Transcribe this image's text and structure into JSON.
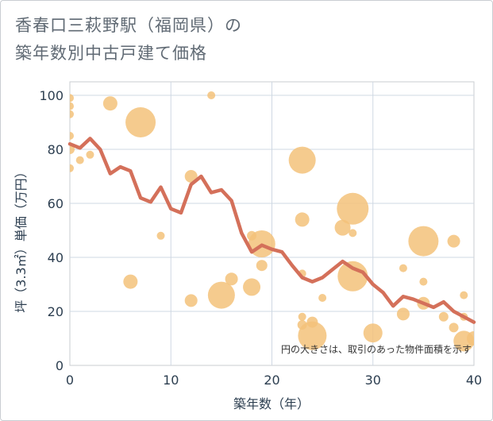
{
  "title_lines": [
    "香春口三萩野駅（福岡県）の",
    "築年数別中古戸建て価格"
  ],
  "chart_data": {
    "type": "scatter",
    "title": "香春口三萩野駅（福岡県）の築年数別中古戸建て価格",
    "xlabel": "築年数（年）",
    "ylabel": "坪（3.3㎡）単価（万円）",
    "xlim": [
      0,
      40
    ],
    "ylim": [
      0,
      105
    ],
    "x_ticks": [
      0,
      10,
      20,
      30,
      40
    ],
    "y_ticks": [
      0,
      20,
      40,
      60,
      80,
      100
    ],
    "grid": true,
    "annotation": "円の大きさは、取引のあった物件面積を示す",
    "colors": {
      "bubble": "#f3c27a",
      "line": "#d4705a",
      "grid": "#cfd8e3",
      "text": "#2c3e50"
    },
    "bubbles": [
      {
        "x": 0,
        "y": 99,
        "r": 5
      },
      {
        "x": 0,
        "y": 96,
        "r": 5
      },
      {
        "x": 0,
        "y": 93,
        "r": 5
      },
      {
        "x": 0,
        "y": 85,
        "r": 5
      },
      {
        "x": 0,
        "y": 80,
        "r": 6
      },
      {
        "x": 0,
        "y": 73,
        "r": 5
      },
      {
        "x": 1,
        "y": 76,
        "r": 5
      },
      {
        "x": 2,
        "y": 78,
        "r": 5
      },
      {
        "x": 4,
        "y": 97,
        "r": 9
      },
      {
        "x": 7,
        "y": 90,
        "r": 19
      },
      {
        "x": 6,
        "y": 31,
        "r": 9
      },
      {
        "x": 9,
        "y": 48,
        "r": 5
      },
      {
        "x": 12,
        "y": 70,
        "r": 8
      },
      {
        "x": 12,
        "y": 24,
        "r": 8
      },
      {
        "x": 14,
        "y": 100,
        "r": 5
      },
      {
        "x": 15,
        "y": 26,
        "r": 17
      },
      {
        "x": 16,
        "y": 32,
        "r": 8
      },
      {
        "x": 18,
        "y": 48,
        "r": 6
      },
      {
        "x": 18,
        "y": 29,
        "r": 11
      },
      {
        "x": 19,
        "y": 45,
        "r": 17
      },
      {
        "x": 19,
        "y": 37,
        "r": 7
      },
      {
        "x": 23,
        "y": 76,
        "r": 17
      },
      {
        "x": 23,
        "y": 54,
        "r": 9
      },
      {
        "x": 23,
        "y": 34,
        "r": 5
      },
      {
        "x": 23,
        "y": 18,
        "r": 5
      },
      {
        "x": 23,
        "y": 15,
        "r": 6
      },
      {
        "x": 24,
        "y": 16,
        "r": 7
      },
      {
        "x": 24,
        "y": 11,
        "r": 18
      },
      {
        "x": 25,
        "y": 25,
        "r": 5
      },
      {
        "x": 27,
        "y": 51,
        "r": 10
      },
      {
        "x": 28,
        "y": 58,
        "r": 20
      },
      {
        "x": 28,
        "y": 49,
        "r": 5
      },
      {
        "x": 28,
        "y": 33,
        "r": 19
      },
      {
        "x": 30,
        "y": 12,
        "r": 12
      },
      {
        "x": 33,
        "y": 36,
        "r": 5
      },
      {
        "x": 33,
        "y": 19,
        "r": 8
      },
      {
        "x": 35,
        "y": 46,
        "r": 19
      },
      {
        "x": 35,
        "y": 31,
        "r": 5
      },
      {
        "x": 35,
        "y": 23,
        "r": 8
      },
      {
        "x": 37,
        "y": 18,
        "r": 6
      },
      {
        "x": 38,
        "y": 46,
        "r": 8
      },
      {
        "x": 38,
        "y": 14,
        "r": 6
      },
      {
        "x": 39,
        "y": 26,
        "r": 5
      },
      {
        "x": 39,
        "y": 18,
        "r": 5
      },
      {
        "x": 39,
        "y": 9,
        "r": 13
      },
      {
        "x": 40,
        "y": 10,
        "r": 9
      }
    ],
    "trend": {
      "x": [
        0,
        1,
        2,
        3,
        4,
        5,
        6,
        7,
        8,
        9,
        10,
        11,
        12,
        13,
        14,
        15,
        16,
        17,
        18,
        19,
        20,
        21,
        22,
        23,
        24,
        25,
        26,
        27,
        28,
        29,
        30,
        31,
        32,
        33,
        34,
        35,
        36,
        37,
        38,
        39,
        40
      ],
      "y": [
        82,
        80.5,
        84,
        80,
        71,
        73.5,
        72,
        62,
        60.5,
        66,
        58,
        56.5,
        67,
        70,
        64,
        65,
        61,
        49,
        42,
        44.5,
        43,
        42,
        37,
        32.5,
        31,
        32.5,
        35.5,
        38.5,
        36,
        34.5,
        30,
        27,
        22,
        25.5,
        24.5,
        23,
        21.5,
        23.5,
        20,
        18,
        16
      ]
    }
  }
}
